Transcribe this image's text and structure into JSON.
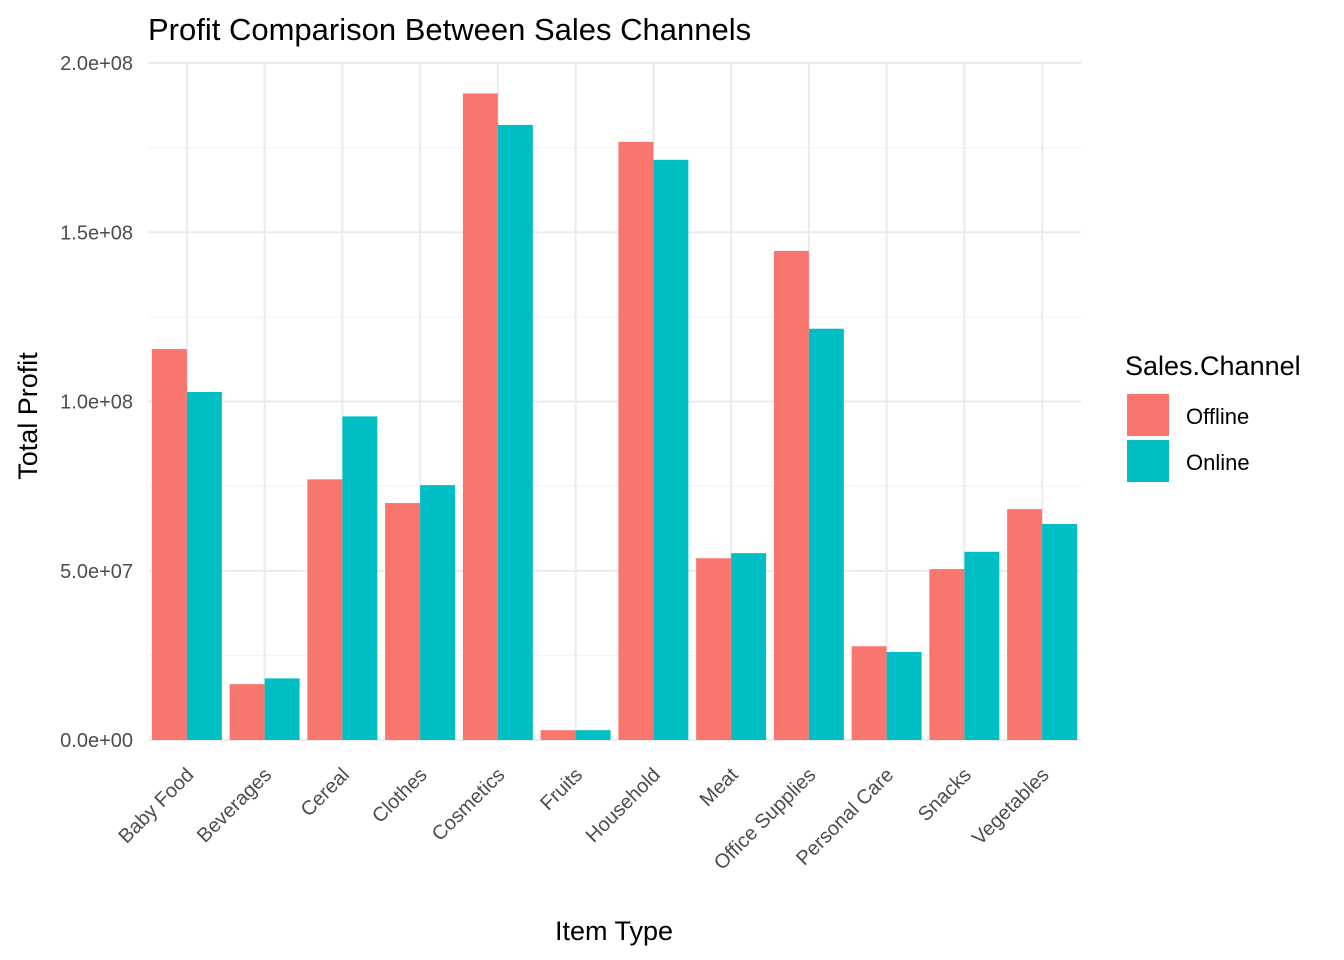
{
  "chart_data": {
    "type": "bar",
    "title": "Profit Comparison Between Sales Channels",
    "xlabel": "Item Type",
    "ylabel": "Total Profit",
    "categories": [
      "Baby Food",
      "Beverages",
      "Cereal",
      "Clothes",
      "Cosmetics",
      "Fruits",
      "Household",
      "Meat",
      "Office Supplies",
      "Personal Care",
      "Snacks",
      "Vegetables"
    ],
    "series": [
      {
        "name": "Offline",
        "color": "#F8766D",
        "values": [
          115500000,
          16500000,
          77000000,
          70000000,
          191000000,
          2900000,
          176700000,
          53700000,
          144500000,
          27700000,
          50500000,
          68200000
        ]
      },
      {
        "name": "Online",
        "color": "#00BFC4",
        "values": [
          102800000,
          18200000,
          95600000,
          75300000,
          181700000,
          2900000,
          171400000,
          55200000,
          121500000,
          26000000,
          55600000,
          63800000
        ]
      }
    ],
    "ylim": [
      0,
      200000000
    ],
    "yticks": [
      0,
      50000000,
      100000000,
      150000000,
      200000000
    ],
    "ytick_labels": [
      "0.0e+00",
      "5.0e+07",
      "1.0e+08",
      "1.5e+08",
      "2.0e+08"
    ],
    "grid": true,
    "legend": {
      "title": "Sales.Channel",
      "position": "right",
      "entries": [
        "Offline",
        "Online"
      ]
    }
  }
}
